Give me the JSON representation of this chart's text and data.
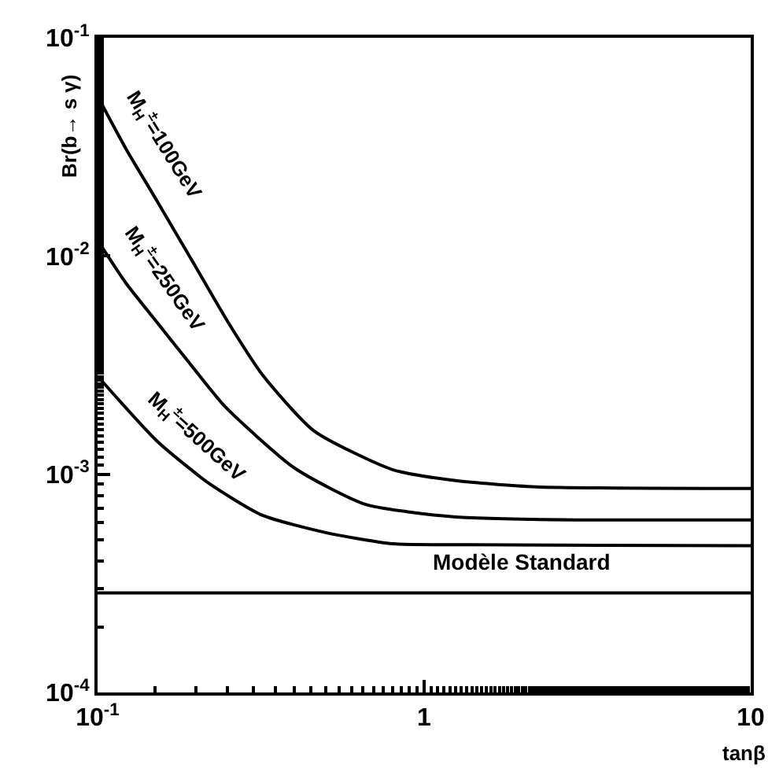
{
  "chart_data": {
    "type": "line",
    "xlabel": "tanβ",
    "ylabel": "Br(b→ s γ)",
    "log": "xy",
    "grid": false,
    "legend": false,
    "marker": "none",
    "line_style": "solid",
    "xlim": [
      0.1,
      10
    ],
    "ylim": [
      0.0001,
      0.1
    ],
    "xticks": [
      {
        "value": 0.1,
        "label": "10$^{-1}$"
      },
      1,
      10
    ],
    "yticks": [
      {
        "value": 0.0001,
        "label": "10$^{-4}$"
      },
      {
        "value": 0.001,
        "label": "10$^{-3}$"
      },
      {
        "value": 0.01,
        "label": "10$^{-2}$"
      },
      {
        "value": 0.1,
        "label": "10$^{-1}$"
      }
    ],
    "series": [
      {
        "name": "M$_{H}$$^{±}$=100GeV",
        "color": "#000000",
        "x": [
          0.1,
          0.122,
          0.152,
          0.196,
          0.251,
          0.32,
          0.46,
          0.8,
          1.25,
          2.2,
          10
        ],
        "values": [
          0.054,
          0.0311,
          0.0179,
          0.00936,
          0.00497,
          0.00285,
          0.00158,
          0.00105,
          0.000935,
          0.000875,
          0.00086
        ]
      },
      {
        "name": "M$_{H}$$^{±}$=250GeV",
        "color": "#000000",
        "x": [
          0.1,
          0.122,
          0.152,
          0.19,
          0.245,
          0.4,
          0.66,
          1.25,
          3.0,
          10
        ],
        "values": [
          0.0118,
          0.00753,
          0.00497,
          0.00327,
          0.00205,
          0.00107,
          0.000728,
          0.000637,
          0.000617,
          0.000617
        ]
      },
      {
        "name": "M$_{H}$$^{±}$=500GeV",
        "color": "#000000",
        "x": [
          0.101,
          0.152,
          0.22,
          0.32,
          0.5,
          0.8,
          1.39,
          10
        ],
        "values": [
          0.00277,
          0.00142,
          0.000905,
          0.000648,
          0.00054,
          0.00048,
          0.000475,
          0.00047
        ]
      }
    ],
    "ref_lines": [
      {
        "axis": "y",
        "value": 0.000286,
        "label": "Modèle Standard",
        "color": "#000000",
        "line_style": "solid"
      }
    ]
  }
}
